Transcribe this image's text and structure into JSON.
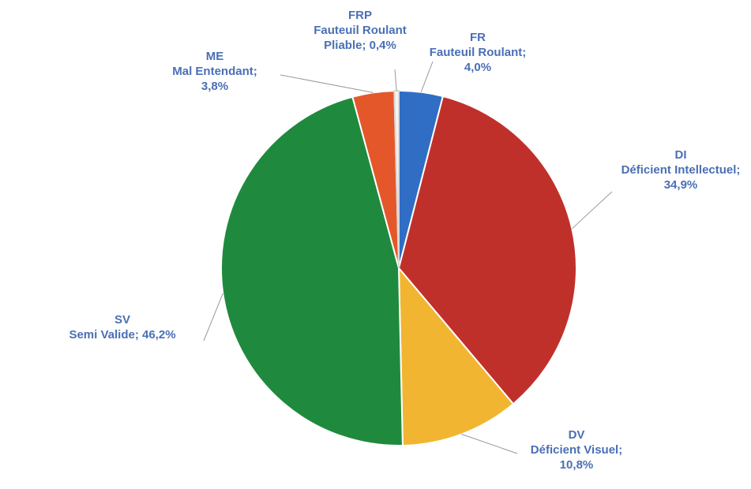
{
  "chart_data": {
    "type": "pie",
    "categories": [
      "FR",
      "DI",
      "DV",
      "SV",
      "ME",
      "FRP"
    ],
    "descriptions": [
      "Fauteuil Roulant;",
      "Déficient Intellectuel;",
      "Déficient Visuel;",
      "Semi Valide;",
      "Mal Entendant;",
      "Fauteuil Roulant Pliable;"
    ],
    "values": [
      4.0,
      34.9,
      10.8,
      46.2,
      3.8,
      0.4
    ],
    "value_labels": [
      "4,0%",
      "34,9%",
      "10,8%",
      "46,2%",
      "3,8%",
      "0,4%"
    ],
    "colors": [
      "#2f6ec4",
      "#c0302b",
      "#f2b531",
      "#1f8a3d",
      "#e4572a",
      "#f4f4f4"
    ]
  }
}
